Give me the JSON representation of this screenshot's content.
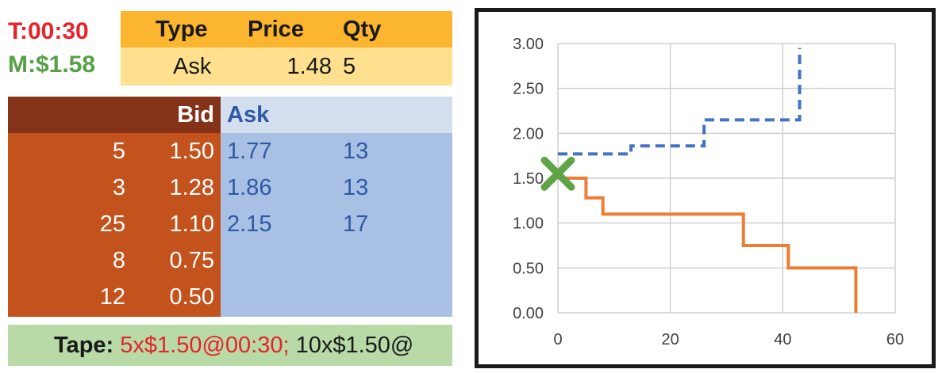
{
  "status": {
    "timer": "T:00:30",
    "market": "M:$1.58"
  },
  "order": {
    "headers": [
      "Type",
      "Price",
      "Qty"
    ],
    "type": "Ask",
    "price": "1.48",
    "qty": "5"
  },
  "book": {
    "bid_header": "Bid",
    "ask_header": "Ask",
    "bids": [
      {
        "qty": "5",
        "price": "1.50"
      },
      {
        "qty": "3",
        "price": "1.28"
      },
      {
        "qty": "25",
        "price": "1.10"
      },
      {
        "qty": "8",
        "price": "0.75"
      },
      {
        "qty": "12",
        "price": "0.50"
      }
    ],
    "asks": [
      {
        "price": "1.77",
        "qty": "13"
      },
      {
        "price": "1.86",
        "qty": "13"
      },
      {
        "price": "2.15",
        "qty": "17"
      }
    ]
  },
  "tape": {
    "label": "Tape:",
    "entry1": "5x$1.50@00:30;",
    "entry2": "10x$1.50@"
  },
  "colors": {
    "bid_line": "#ed7d31",
    "ask_line": "#4472c4",
    "marker": "#5ea346",
    "grid": "#d0d0d0"
  },
  "chart_data": {
    "type": "line",
    "step": true,
    "xlim": [
      0,
      60
    ],
    "ylim": [
      0,
      3
    ],
    "x_ticks": [
      "0",
      "20",
      "40",
      "60"
    ],
    "y_ticks": [
      "0.00",
      "0.50",
      "1.00",
      "1.50",
      "2.00",
      "2.50",
      "3.00"
    ],
    "grid": true,
    "series": [
      {
        "style": "dashed",
        "x": [
          0,
          13,
          13,
          26,
          26,
          43,
          43
        ],
        "y": [
          1.77,
          1.77,
          1.86,
          1.86,
          2.15,
          2.15,
          2.95
        ]
      },
      {
        "style": "solid",
        "x": [
          0,
          5,
          5,
          8,
          8,
          33,
          33,
          41,
          41,
          53,
          53
        ],
        "y": [
          1.5,
          1.5,
          1.28,
          1.28,
          1.1,
          1.1,
          0.75,
          0.75,
          0.5,
          0.5,
          0.0
        ]
      }
    ],
    "marker": {
      "shape": "x",
      "x": 0,
      "y": 1.55
    }
  }
}
